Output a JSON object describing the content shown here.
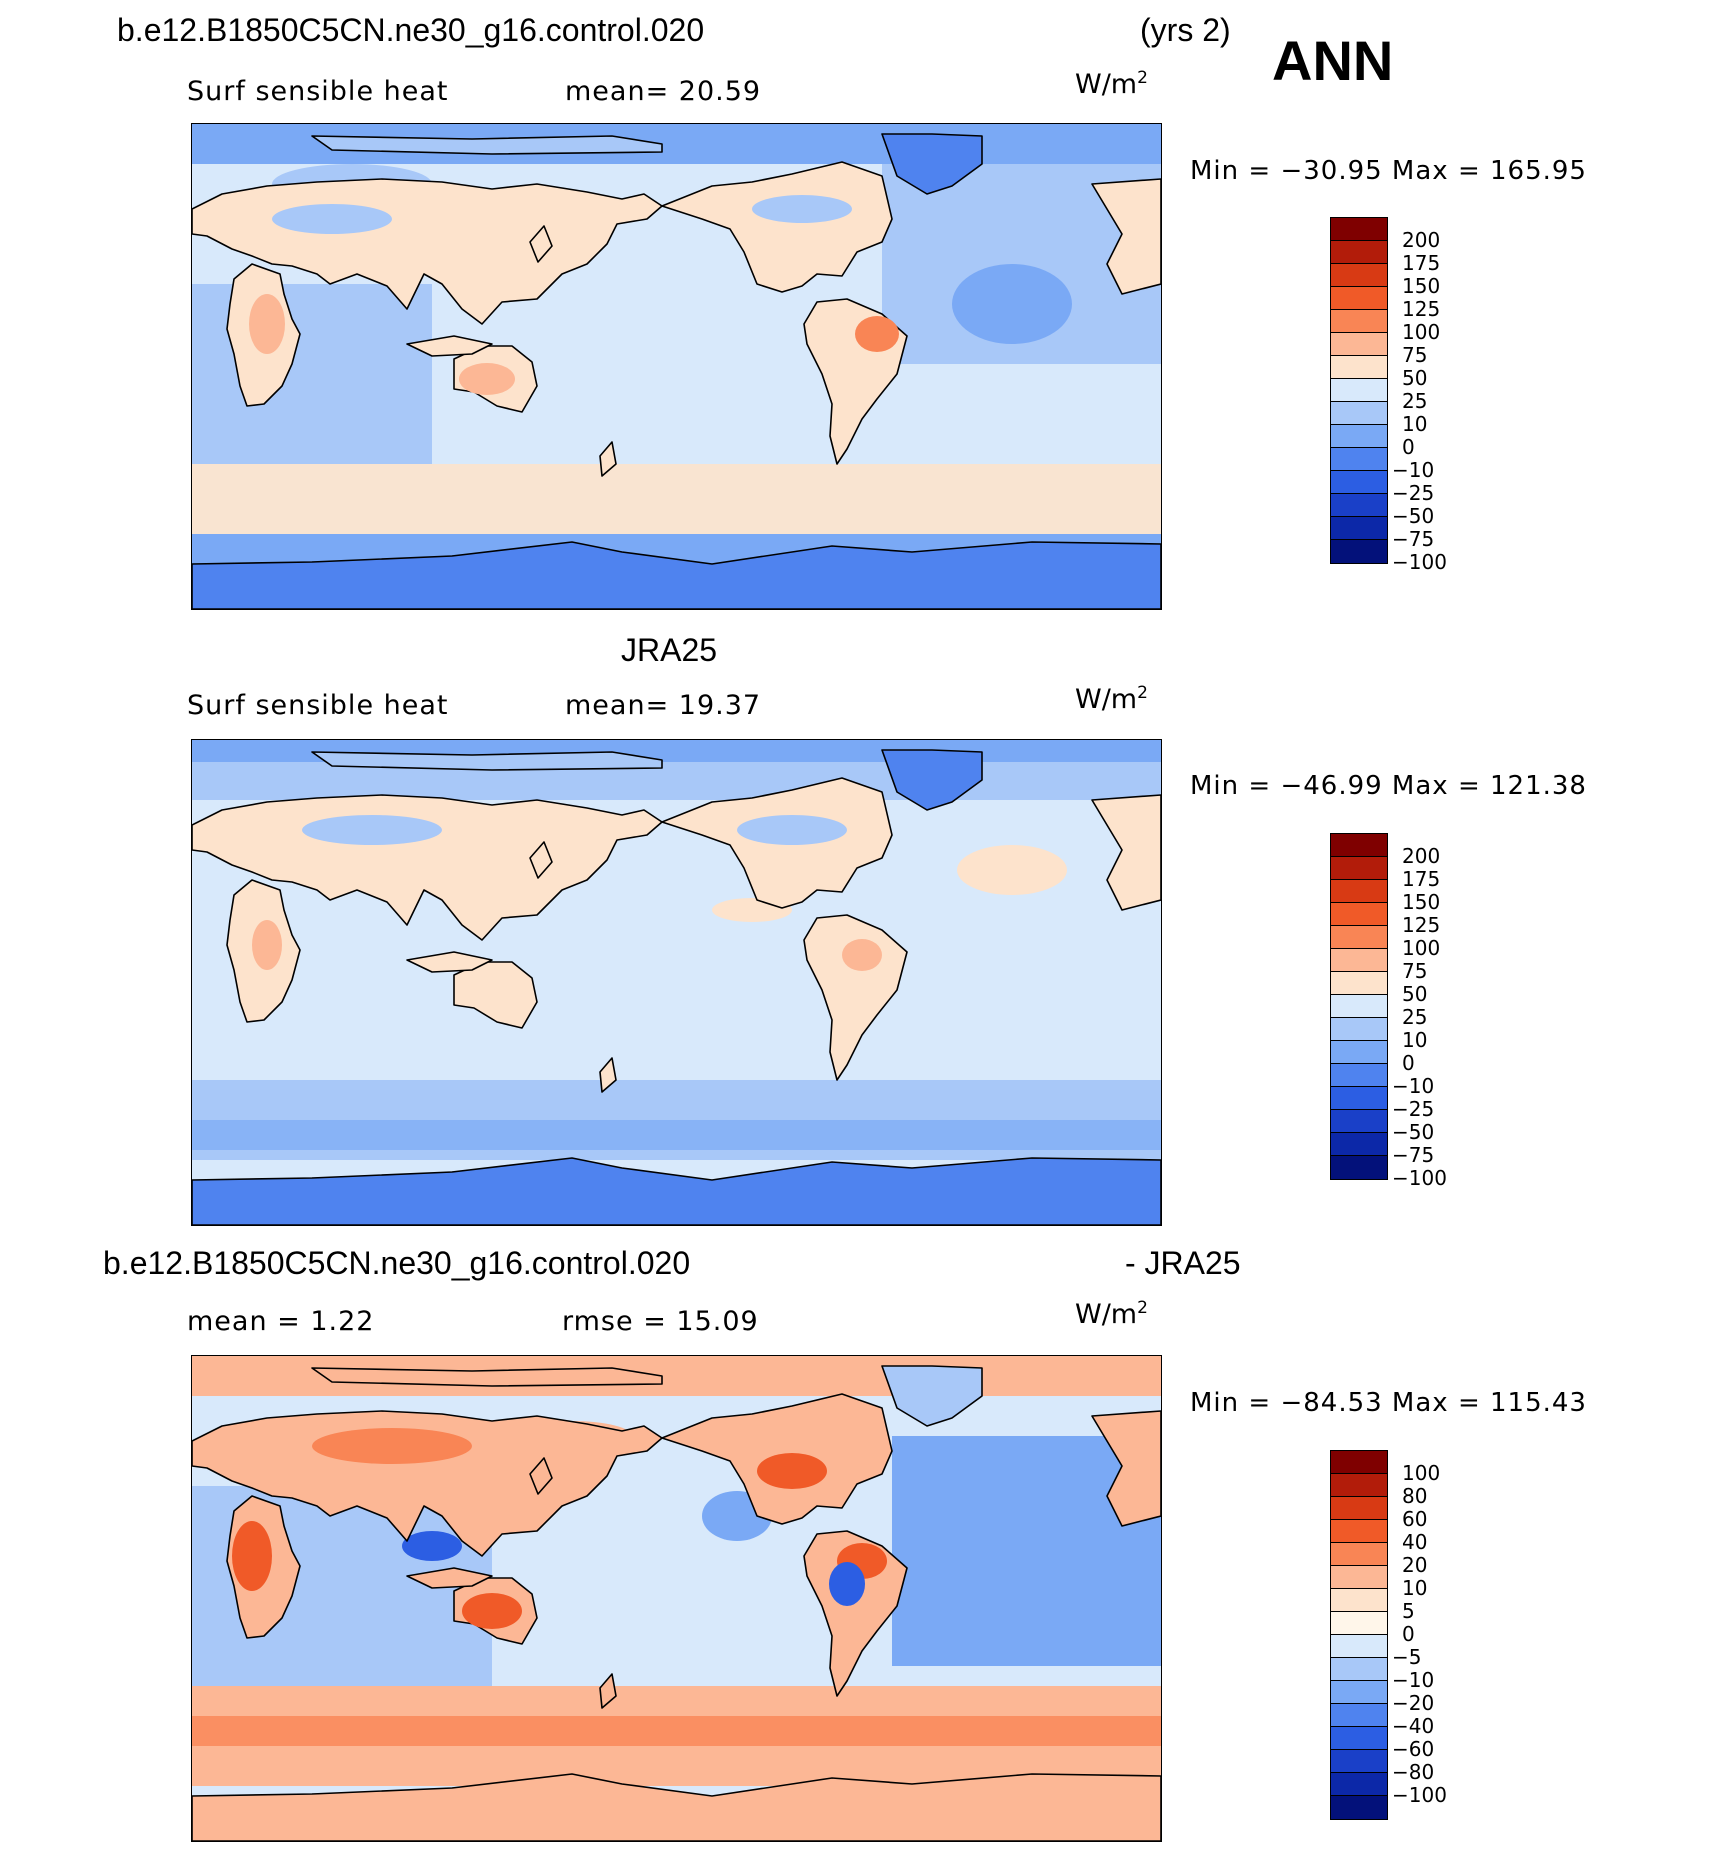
{
  "header": {
    "case_name": "b.e12.B1850C5CN.ne30_g16.control.020",
    "years": "(yrs 2)",
    "season": "ANN"
  },
  "panels": [
    {
      "id": "model",
      "title": "",
      "variable": "Surf sensible heat",
      "stat_text": "mean=   20.59",
      "unit": "W/m",
      "unit_exp": "2",
      "minmax": "Min = −30.95 Max = 165.95",
      "colorbar": {
        "colors": [
          "#7f0000",
          "#b21c0a",
          "#d83a14",
          "#f05a28",
          "#f98555",
          "#fcb795",
          "#fde3cc",
          "#d8e9fb",
          "#a8c8f8",
          "#7aa9f5",
          "#4f83ef",
          "#2c5ee3",
          "#1a40c8",
          "#0c28a8",
          "#03117a"
        ],
        "labels": [
          "200",
          "175",
          "150",
          "125",
          "100",
          "75",
          "50",
          "25",
          "10",
          "0",
          "−10",
          "−25",
          "−50",
          "−75",
          "−100"
        ]
      }
    },
    {
      "id": "obs",
      "title": "JRA25",
      "variable": "Surf sensible heat",
      "stat_text": "mean=   19.37",
      "unit": "W/m",
      "unit_exp": "2",
      "minmax": "Min = −46.99 Max = 121.38",
      "colorbar": {
        "colors": [
          "#7f0000",
          "#b21c0a",
          "#d83a14",
          "#f05a28",
          "#f98555",
          "#fcb795",
          "#fde3cc",
          "#d8e9fb",
          "#a8c8f8",
          "#7aa9f5",
          "#4f83ef",
          "#2c5ee3",
          "#1a40c8",
          "#0c28a8",
          "#03117a"
        ],
        "labels": [
          "200",
          "175",
          "150",
          "125",
          "100",
          "75",
          "50",
          "25",
          "10",
          "0",
          "−10",
          "−25",
          "−50",
          "−75",
          "−100"
        ]
      }
    },
    {
      "id": "diff",
      "title_left": "b.e12.B1850C5CN.ne30_g16.control.020",
      "title_right": "- JRA25",
      "stat_mean": "mean =    1.22",
      "stat_rmse": "rmse =   15.09",
      "unit": "W/m",
      "unit_exp": "2",
      "minmax": "Min = −84.53 Max = 115.43",
      "colorbar": {
        "colors": [
          "#7f0000",
          "#b21c0a",
          "#d83a14",
          "#f05a28",
          "#f98555",
          "#fcb795",
          "#fde3cc",
          "#fff6ea",
          "#d8e9fb",
          "#a8c8f8",
          "#7aa9f5",
          "#4f83ef",
          "#2c5ee3",
          "#1a40c8",
          "#0c28a8",
          "#03117a"
        ],
        "labels": [
          "100",
          "80",
          "60",
          "40",
          "20",
          "10",
          "5",
          "0",
          "−5",
          "−10",
          "−20",
          "−40",
          "−60",
          "−80",
          "−100"
        ]
      }
    }
  ],
  "map_palette": {
    "ocean_light": "#d8e9fb",
    "ocean_mid": "#a8c8f8",
    "ocean_blue": "#7aa9f5",
    "deep_blue": "#4f83ef",
    "dark_blue": "#2c5ee3",
    "peach": "#fde3cc",
    "salmon": "#fcb795",
    "orange": "#f98555",
    "red_orange": "#f05a28",
    "red": "#d83a14",
    "coast": "#000000"
  }
}
